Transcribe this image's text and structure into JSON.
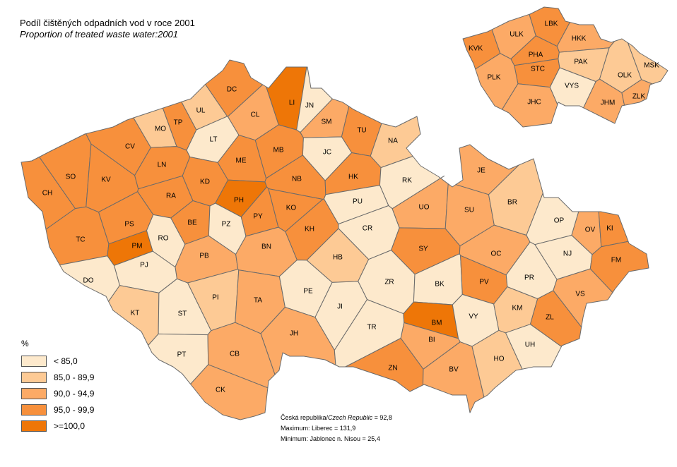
{
  "title": "Podíl čištěných odpadních vod v roce 2001",
  "subtitle": "Proportion of treated waste water:2001",
  "legend": {
    "unit": "%",
    "classes": [
      {
        "label": "< 85,0",
        "color": "#fde9cc"
      },
      {
        "label": "85,0 - 89,9",
        "color": "#fdca95"
      },
      {
        "label": "90,0 - 94,9",
        "color": "#fcaa66"
      },
      {
        "label": "95,0 - 99,9",
        "color": "#f7903c"
      },
      {
        "label": ">=100,0",
        "color": "#ee7607"
      }
    ]
  },
  "footer": {
    "republic_cz": "Česká republika/",
    "republic_en": "Czech Republic",
    "republic_value": " = 92,8",
    "maximum": "Maximum: Liberec = 131,9",
    "minimum": "Minimum: Jablonec n. Nisou = 25,4"
  },
  "border_color": "#6b6b6b",
  "districts": [
    {
      "code": "CH",
      "class": 3
    },
    {
      "code": "SO",
      "class": 3
    },
    {
      "code": "KV",
      "class": 3
    },
    {
      "code": "CV",
      "class": 3
    },
    {
      "code": "MO",
      "class": 1
    },
    {
      "code": "TP",
      "class": 3
    },
    {
      "code": "UL",
      "class": 1
    },
    {
      "code": "LT",
      "class": 0
    },
    {
      "code": "LN",
      "class": 3
    },
    {
      "code": "KD",
      "class": 3
    },
    {
      "code": "RA",
      "class": 3
    },
    {
      "code": "PS",
      "class": 3
    },
    {
      "code": "TC",
      "class": 3
    },
    {
      "code": "PM",
      "class": 4
    },
    {
      "code": "RO",
      "class": 0
    },
    {
      "code": "BE",
      "class": 3
    },
    {
      "code": "PB",
      "class": 2
    },
    {
      "code": "PJ",
      "class": 0
    },
    {
      "code": "DC",
      "class": 3
    },
    {
      "code": "CL",
      "class": 2
    },
    {
      "code": "LI",
      "class": 4
    },
    {
      "code": "JN",
      "class": 0
    },
    {
      "code": "SM",
      "class": 2
    },
    {
      "code": "TU",
      "class": 3
    },
    {
      "code": "NA",
      "class": 1
    },
    {
      "code": "JC",
      "class": 0
    },
    {
      "code": "ME",
      "class": 3
    },
    {
      "code": "MB",
      "class": 3
    },
    {
      "code": "NB",
      "class": 3
    },
    {
      "code": "HK",
      "class": 3
    },
    {
      "code": "RK",
      "class": 0
    },
    {
      "code": "PH",
      "class": 4
    },
    {
      "code": "PZ",
      "class": 0
    },
    {
      "code": "PY",
      "class": 3
    },
    {
      "code": "KO",
      "class": 3
    },
    {
      "code": "KH",
      "class": 3
    },
    {
      "code": "PU",
      "class": 0
    },
    {
      "code": "CR",
      "class": 0
    },
    {
      "code": "UO",
      "class": 2
    },
    {
      "code": "SY",
      "class": 3
    },
    {
      "code": "BN",
      "class": 2
    },
    {
      "code": "HB",
      "class": 1
    },
    {
      "code": "DO",
      "class": 0
    },
    {
      "code": "KT",
      "class": 1
    },
    {
      "code": "ST",
      "class": 0
    },
    {
      "code": "PI",
      "class": 1
    },
    {
      "code": "TA",
      "class": 2
    },
    {
      "code": "PE",
      "class": 0
    },
    {
      "code": "JH",
      "class": 2
    },
    {
      "code": "PT",
      "class": 0
    },
    {
      "code": "CB",
      "class": 2
    },
    {
      "code": "CK",
      "class": 2
    },
    {
      "code": "ZR",
      "class": 0
    },
    {
      "code": "JI",
      "class": 0
    },
    {
      "code": "TR",
      "class": 0
    },
    {
      "code": "BK",
      "class": 0
    },
    {
      "code": "PV",
      "class": 3
    },
    {
      "code": "OC",
      "class": 2
    },
    {
      "code": "BM",
      "class": 4
    },
    {
      "code": "BI",
      "class": 2
    },
    {
      "code": "VY",
      "class": 0
    },
    {
      "code": "ZN",
      "class": 3
    },
    {
      "code": "BV",
      "class": 2
    },
    {
      "code": "HO",
      "class": 1
    },
    {
      "code": "JE",
      "class": 2
    },
    {
      "code": "SU",
      "class": 2
    },
    {
      "code": "BR",
      "class": 1
    },
    {
      "code": "OP",
      "class": 0
    },
    {
      "code": "OV",
      "class": 2
    },
    {
      "code": "KI",
      "class": 3
    },
    {
      "code": "NJ",
      "class": 0
    },
    {
      "code": "FM",
      "class": 3
    },
    {
      "code": "PR",
      "class": 0
    },
    {
      "code": "VS",
      "class": 2
    },
    {
      "code": "KM",
      "class": 1
    },
    {
      "code": "ZL",
      "class": 3
    },
    {
      "code": "UH",
      "class": 0
    }
  ],
  "regions": [
    {
      "code": "KVK",
      "class": 3
    },
    {
      "code": "ULK",
      "class": 2
    },
    {
      "code": "LBK",
      "class": 3
    },
    {
      "code": "HKK",
      "class": 2
    },
    {
      "code": "PHA",
      "class": 3
    },
    {
      "code": "STC",
      "class": 3
    },
    {
      "code": "PAK",
      "class": 1
    },
    {
      "code": "PLK",
      "class": 2
    },
    {
      "code": "VYS",
      "class": 0
    },
    {
      "code": "JHC",
      "class": 2
    },
    {
      "code": "JHM",
      "class": 2
    },
    {
      "code": "OLK",
      "class": 1
    },
    {
      "code": "MSK",
      "class": 1
    },
    {
      "code": "ZLK",
      "class": 2
    }
  ]
}
